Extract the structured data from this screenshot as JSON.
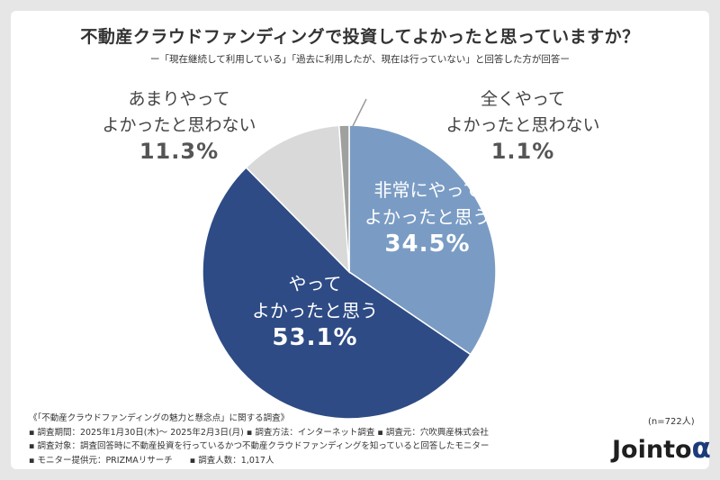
{
  "title": "不動産クラウドファンディングで投資してよかったと思っていますか？",
  "subtitle": "ー「現在継続して利用している」「過去に利用したが、現在は行っていない」と回答した方が回答ー",
  "chart_data": {
    "type": "pie",
    "title": "不動産クラウドファンディングで投資してよかったと思っていますか？",
    "slices": [
      {
        "label_lines": [
          "非常にやって",
          "よかったと思う"
        ],
        "value": 34.5,
        "value_label": "34.5%",
        "color": "#7a9cc4"
      },
      {
        "label_lines": [
          "やって",
          "よかったと思う"
        ],
        "value": 53.1,
        "value_label": "53.1%",
        "color": "#2e4b85"
      },
      {
        "label_lines": [
          "あまりやって",
          "よかったと思わない"
        ],
        "value": 11.3,
        "value_label": "11.3%",
        "color": "#d9d9d9"
      },
      {
        "label_lines": [
          "全くやって",
          "よかったと思わない"
        ],
        "value": 1.1,
        "value_label": "1.1%",
        "color": "#a0a0a0"
      }
    ]
  },
  "footer": {
    "lines": [
      "《「不動産クラウドファンディングの魅力と懸念点」に関する調査》",
      "▪ 調査期間：2025年1月30日(木)～ 2025年2月3日(月) ▪ 調査方法：インターネット調査 ▪ 調査元：穴吹興産株式会社",
      "▪ 調査対象：調査回答時に不動産投資を行っているかつ不動産クラウドファンディングを知っていると回答したモニター",
      "▪ モニター提供元：PRIZMAリサーチ　　▪ 調査人数：1,017人"
    ],
    "n_label": "(n=722人)"
  },
  "logo": {
    "text": "Jointo",
    "mark": "α"
  }
}
